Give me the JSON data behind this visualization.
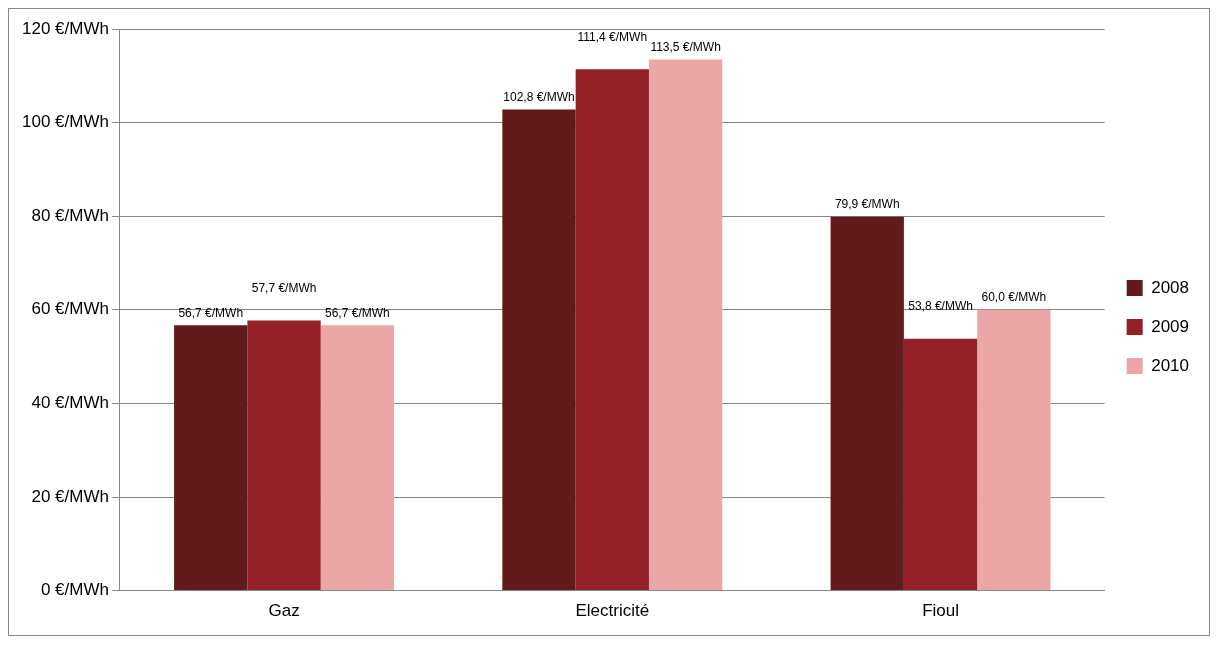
{
  "chart_data": {
    "type": "bar",
    "categories": [
      "Gaz",
      "Electricité",
      "Fioul"
    ],
    "series": [
      {
        "name": "2008",
        "color": "#631a1a",
        "values": [
          56.7,
          102.8,
          79.9
        ],
        "value_labels": [
          "56,7 €/MWh",
          "102,8 €/MWh",
          "79,9 €/MWh"
        ]
      },
      {
        "name": "2009",
        "color": "#942126",
        "values": [
          57.7,
          111.4,
          53.8
        ],
        "value_labels": [
          "57,7 €/MWh",
          "111,4 €/MWh",
          "53,8 €/MWh"
        ]
      },
      {
        "name": "2010",
        "color": "#eba7a8",
        "values": [
          56.7,
          113.5,
          60.0
        ],
        "value_labels": [
          "56,7 €/MWh",
          "113,5 €/MWh",
          "60,0 €/MWh"
        ]
      }
    ],
    "ylim": [
      0,
      120
    ],
    "yticks": [
      {
        "value": 0,
        "label": "0 €/MWh"
      },
      {
        "value": 20,
        "label": "20 €/MWh"
      },
      {
        "value": 40,
        "label": "40 €/MWh"
      },
      {
        "value": 60,
        "label": "60 €/MWh"
      },
      {
        "value": 80,
        "label": "80 €/MWh"
      },
      {
        "value": 100,
        "label": "100 €/MWh"
      },
      {
        "value": 120,
        "label": "120 €/MWh"
      }
    ],
    "grid": "y",
    "legend": "right"
  }
}
